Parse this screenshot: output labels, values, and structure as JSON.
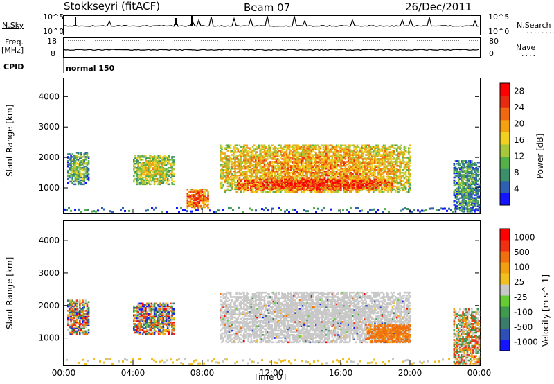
{
  "header": {
    "radar": "Stokkseyri (fitACF)",
    "beam": "Beam 07",
    "date": "26/Dec/2011"
  },
  "aux_panel": {
    "nsky_label": "N.Sky",
    "nsearch_label": "N.Search",
    "nsky_top": "10^5",
    "nsky_bottom": "10^0",
    "nsearch_top": "10^5",
    "nsearch_bottom": "10^0",
    "freq_label": "Freq.",
    "freq_unit": "[MHz]",
    "freq_top": "18",
    "freq_bottom": "8",
    "nave_label": "Nave",
    "nave_top": "80",
    "nave_bottom": "0",
    "cpid_label": "CPID",
    "cpid_value": "normal 150"
  },
  "colors": {
    "power": [
      "#1414ff",
      "#2f5fb0",
      "#3b8f6a",
      "#55b04a",
      "#a8c83c",
      "#f0d020",
      "#f5a010",
      "#f06810",
      "#e82a10",
      "#ff0000"
    ],
    "velocity": [
      "#1414ff",
      "#2f4fb8",
      "#3c7a6a",
      "#3f9a50",
      "#66cc33",
      "#c8c8c8",
      "#f0c020",
      "#f0a010",
      "#f07010",
      "#f03010",
      "#ff0000"
    ]
  },
  "chart_data": [
    {
      "type": "heatmap",
      "name": "power",
      "ylabel": "Slant Range [km]",
      "xlabel": "Time UT",
      "xticks": [
        "00:00",
        "04:00",
        "08:00",
        "12:00",
        "16:00",
        "20:00",
        "00:00"
      ],
      "x_range_hours": [
        0,
        24
      ],
      "ylim": [
        180,
        4600
      ],
      "yticks": [
        1000,
        2000,
        3000,
        4000
      ],
      "colorbar": {
        "label": "Power [dB]",
        "ticks": [
          4,
          8,
          12,
          16,
          20,
          24,
          28
        ],
        "range": [
          0,
          30
        ]
      },
      "regions": [
        {
          "t0": 0.2,
          "t1": 1.4,
          "r0": 1100,
          "r1": 2150,
          "level": 12
        },
        {
          "t0": 4.0,
          "t1": 6.3,
          "r0": 1100,
          "r1": 2050,
          "level": 16
        },
        {
          "t0": 7.1,
          "t1": 8.3,
          "r0": 300,
          "r1": 950,
          "level": 24
        },
        {
          "t0": 9.0,
          "t1": 20.0,
          "r0": 850,
          "r1": 2400,
          "level": 20
        },
        {
          "t0": 10.0,
          "t1": 19.0,
          "r0": 900,
          "r1": 1300,
          "level": 26
        },
        {
          "t0": 22.5,
          "t1": 24.0,
          "r0": 200,
          "r1": 1900,
          "level": 10
        }
      ]
    },
    {
      "type": "heatmap",
      "name": "velocity",
      "ylabel": "Slant Range [km]",
      "xlabel": "Time UT",
      "xticks": [
        "00:00",
        "04:00",
        "08:00",
        "12:00",
        "16:00",
        "20:00",
        "00:00"
      ],
      "x_range_hours": [
        0,
        24
      ],
      "ylim": [
        180,
        4600
      ],
      "yticks": [
        1000,
        2000,
        3000,
        4000
      ],
      "colorbar": {
        "label": "Velocity [m s^-1]",
        "ticks": [
          "1000",
          "500",
          "100",
          "25",
          "-25",
          "-100",
          "-500",
          "-1000"
        ]
      },
      "regions": [
        {
          "t0": 0.2,
          "t1": 1.4,
          "r0": 1100,
          "r1": 2150,
          "class": "approach"
        },
        {
          "t0": 4.0,
          "t1": 6.3,
          "r0": 1100,
          "r1": 2050,
          "class": "approach"
        },
        {
          "t0": 9.0,
          "t1": 20.0,
          "r0": 850,
          "r1": 2400,
          "class": "ground scatter"
        },
        {
          "t0": 17.5,
          "t1": 20.0,
          "r0": 850,
          "r1": 1400,
          "class": "recede"
        },
        {
          "t0": 22.5,
          "t1": 24.0,
          "r0": 200,
          "r1": 1900,
          "class": "mixed"
        }
      ]
    }
  ]
}
